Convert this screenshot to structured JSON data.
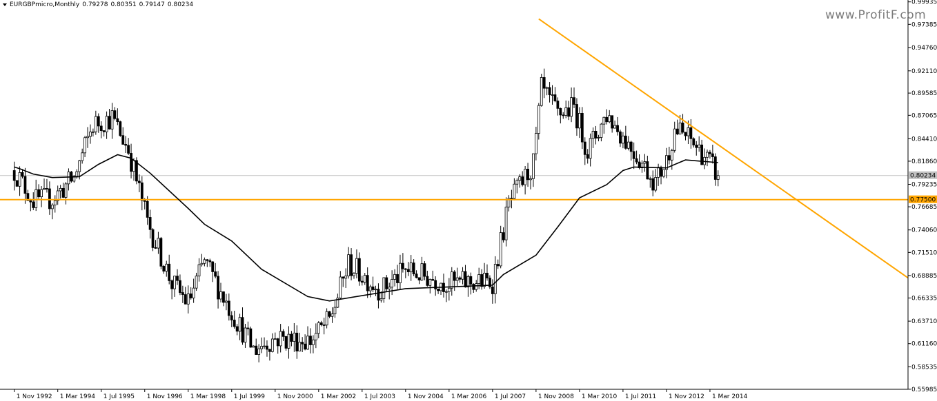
{
  "header": {
    "symbol": "EURGBPmicro,Monthly",
    "open": "0.79278",
    "high": "0.80351",
    "low": "0.79147",
    "close": "0.80234"
  },
  "watermark": "www.ProfitF.com",
  "colors": {
    "background": "#ffffff",
    "candle_up": "#ffffff",
    "candle_down": "#000000",
    "ma_line": "#000000",
    "trend_line": "#ffa500",
    "support_line": "#ffa500",
    "bid_line": "#c0c0c0"
  },
  "chart_data": {
    "type": "candlestick",
    "title": "",
    "ylim": [
      0.5598,
      0.9999
    ],
    "y_ticks": [
      "0.99935",
      "0.97385",
      "0.94760",
      "0.92110",
      "0.89585",
      "0.87065",
      "0.84410",
      "0.81860",
      "0.79235",
      "0.76685",
      "0.74060",
      "0.71510",
      "0.68885",
      "0.66335",
      "0.63710",
      "0.61160",
      "0.58535",
      "0.55985"
    ],
    "x_ticks": [
      "1 Nov 1992",
      "1 Mar 1994",
      "1 Jul 1995",
      "1 Nov 1996",
      "1 Mar 1998",
      "1 Jul 1999",
      "1 Nov 2000",
      "1 Mar 2002",
      "1 Jul 2003",
      "1 Nov 2004",
      "1 Mar 2006",
      "1 Jul 2007",
      "1 Nov 2008",
      "1 Mar 2010",
      "1 Jul 2011",
      "1 Nov 2012",
      "1 Mar 2014"
    ],
    "current_price": {
      "value": 0.80234,
      "label": "0.80234"
    },
    "support_level": {
      "value": 0.775,
      "label": "0.77500"
    },
    "trend_line": {
      "start": {
        "date": "1 Dec 2008",
        "value": 0.98
      },
      "end": {
        "date": "1 Sep 2018",
        "value": 0.727
      }
    },
    "moving_average": [
      {
        "date": "1 Nov 1992",
        "value": 0.812
      },
      {
        "date": "1 Jan 1993",
        "value": 0.81
      },
      {
        "date": "1 Jun 1993",
        "value": 0.804
      },
      {
        "date": "1 Jan 1994",
        "value": 0.8
      },
      {
        "date": "1 Nov 1994",
        "value": 0.801
      },
      {
        "date": "1 Jun 1995",
        "value": 0.815
      },
      {
        "date": "1 Jan 1996",
        "value": 0.826
      },
      {
        "date": "1 Jun 1996",
        "value": 0.822
      },
      {
        "date": "1 Jan 1997",
        "value": 0.805
      },
      {
        "date": "1 Mar 1998",
        "value": 0.765
      },
      {
        "date": "1 Sep 1998",
        "value": 0.747
      },
      {
        "date": "1 Jul 1999",
        "value": 0.728
      },
      {
        "date": "1 Jun 2000",
        "value": 0.696
      },
      {
        "date": "1 Nov 2001",
        "value": 0.665
      },
      {
        "date": "1 Jul 2002",
        "value": 0.66
      },
      {
        "date": "1 Jul 2003",
        "value": 0.666
      },
      {
        "date": "1 Nov 2004",
        "value": 0.674
      },
      {
        "date": "1 Mar 2006",
        "value": 0.676
      },
      {
        "date": "1 Jul 2007",
        "value": 0.678
      },
      {
        "date": "1 Nov 2007",
        "value": 0.69
      },
      {
        "date": "1 Nov 2008",
        "value": 0.712
      },
      {
        "date": "1 Jul 2009",
        "value": 0.744
      },
      {
        "date": "1 Mar 2010",
        "value": 0.777
      },
      {
        "date": "1 Jan 2011",
        "value": 0.792
      },
      {
        "date": "1 Jul 2011",
        "value": 0.808
      },
      {
        "date": "1 Nov 2011",
        "value": 0.812
      },
      {
        "date": "1 Nov 2012",
        "value": 0.811
      },
      {
        "date": "1 Jun 2013",
        "value": 0.82
      },
      {
        "date": "1 Jun 2014",
        "value": 0.817
      }
    ],
    "price_path": [
      {
        "date": "1 Nov 1992",
        "value": 0.808
      },
      {
        "date": "1 Jun 1993",
        "value": 0.774
      },
      {
        "date": "1 Jan 1994",
        "value": 0.776
      },
      {
        "date": "1 Sep 1994",
        "value": 0.8
      },
      {
        "date": "1 Apr 1995",
        "value": 0.86
      },
      {
        "date": "1 Nov 1995",
        "value": 0.868
      },
      {
        "date": "1 May 1996",
        "value": 0.832
      },
      {
        "date": "1 Dec 1996",
        "value": 0.75
      },
      {
        "date": "1 Sep 1997",
        "value": 0.68
      },
      {
        "date": "1 Mar 1998",
        "value": 0.658
      },
      {
        "date": "1 Sep 1998",
        "value": 0.705
      },
      {
        "date": "1 Jun 1999",
        "value": 0.653
      },
      {
        "date": "1 Mar 2000",
        "value": 0.605
      },
      {
        "date": "1 Nov 2000",
        "value": 0.618
      },
      {
        "date": "1 Dec 2001",
        "value": 0.615
      },
      {
        "date": "1 Jul 2002",
        "value": 0.638
      },
      {
        "date": "1 Feb 2003",
        "value": 0.702
      },
      {
        "date": "1 Feb 2004",
        "value": 0.672
      },
      {
        "date": "1 Nov 2004",
        "value": 0.695
      },
      {
        "date": "1 Mar 2006",
        "value": 0.68
      },
      {
        "date": "1 Jul 2007",
        "value": 0.682
      },
      {
        "date": "1 Jan 2008",
        "value": 0.77
      },
      {
        "date": "1 Oct 2008",
        "value": 0.815
      },
      {
        "date": "1 Jan 2009",
        "value": 0.9
      },
      {
        "date": "1 Jul 2009",
        "value": 0.872
      },
      {
        "date": "1 Jan 2010",
        "value": 0.88
      },
      {
        "date": "1 Jun 2010",
        "value": 0.83
      },
      {
        "date": "1 Jan 2011",
        "value": 0.872
      },
      {
        "date": "1 Nov 2011",
        "value": 0.83
      },
      {
        "date": "1 Jul 2012",
        "value": 0.795
      },
      {
        "date": "1 Nov 2012",
        "value": 0.82
      },
      {
        "date": "1 Feb 2013",
        "value": 0.855
      },
      {
        "date": "1 Jul 2013",
        "value": 0.845
      },
      {
        "date": "1 Jan 2014",
        "value": 0.825
      },
      {
        "date": "1 Jun 2014",
        "value": 0.802
      }
    ]
  }
}
